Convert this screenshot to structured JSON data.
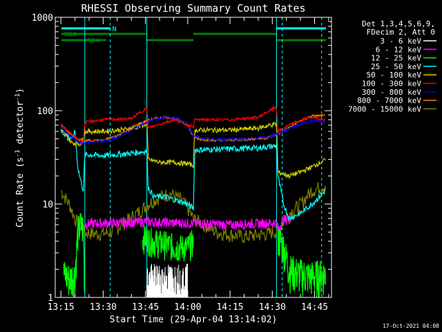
{
  "chart_data": {
    "type": "line",
    "title": "RHESSI Observing Summary Count Rates",
    "xlabel": "Start Time (29-Apr-04 13:14:02)",
    "ylabel_main": "Count Rate (s",
    "ylabel_sup1": "-1",
    "ylabel_mid": " detector",
    "ylabel_sup2": "-1",
    "ylabel_end": ")",
    "yscale": "log",
    "ylim": [
      1,
      1000
    ],
    "xlim_minutes": [
      13.25,
      14.85
    ],
    "x_ticks": [
      {
        "t": 15,
        "label": "13:15"
      },
      {
        "t": 30,
        "label": "13:30"
      },
      {
        "t": 45,
        "label": "13:45"
      },
      {
        "t": 60,
        "label": "14:00"
      },
      {
        "t": 75,
        "label": "14:15"
      },
      {
        "t": 90,
        "label": "14:30"
      },
      {
        "t": 105,
        "label": "14:45"
      }
    ],
    "y_ticks": [
      {
        "v": 1,
        "label": "1"
      },
      {
        "v": 10,
        "label": "10"
      },
      {
        "v": 100,
        "label": "100"
      },
      {
        "v": 1000,
        "label": "1000"
      }
    ],
    "grid": false,
    "legend_header": [
      "Det 1,3,4,5,6,9,",
      "FDecim 2, Att 0"
    ],
    "legend_position": "top-right-outside",
    "series": [
      {
        "name": "3 - 6 keV",
        "color": "#ffffff"
      },
      {
        "name": "6 - 12 keV",
        "color": "#ff00ff"
      },
      {
        "name": "12 - 25 keV",
        "color": "#00ff00"
      },
      {
        "name": "25 - 50 keV",
        "color": "#00ffff"
      },
      {
        "name": "50 - 100 keV",
        "color": "#d0d000"
      },
      {
        "name": "100 - 300 keV",
        "color": "#ff0000"
      },
      {
        "name": "300 - 800 keV",
        "color": "#0000ff"
      },
      {
        "name": "800 - 7000 keV",
        "color": "#ff8000"
      },
      {
        "name": "7000 - 15000 keV",
        "color": "#808000"
      }
    ],
    "flags": [
      {
        "label": "N",
        "color": "#00ffff",
        "segments": [
          [
            15.2,
            32.5
          ],
          [
            91.5,
            109
          ]
        ]
      },
      {
        "label": "RD0",
        "color": "#008000",
        "segments": [
          [
            15.2,
            45.5
          ],
          [
            62,
            91.5
          ]
        ]
      },
      {
        "label": "RD4",
        "color": "#008000",
        "segments": [
          [
            15.2,
            31
          ],
          [
            45.5,
            62
          ],
          [
            91.5,
            109
          ]
        ]
      }
    ],
    "vertical_lines": [
      {
        "t": 23.5,
        "style": "solid"
      },
      {
        "t": 32.5,
        "style": "dashed"
      },
      {
        "t": 45.5,
        "style": "solid"
      },
      {
        "t": 91.5,
        "style": "solid"
      },
      {
        "t": 93.5,
        "style": "dashed"
      },
      {
        "t": 107.5,
        "style": "dashed"
      }
    ],
    "series_shapes": {
      "red": [
        [
          15,
          72
        ],
        [
          17,
          62
        ],
        [
          19,
          55
        ],
        [
          21,
          50
        ],
        [
          23,
          48
        ],
        [
          23.5,
          75
        ],
        [
          30,
          80
        ],
        [
          40,
          82
        ],
        [
          44,
          100
        ],
        [
          45.5,
          105
        ],
        [
          46,
          65
        ],
        [
          52,
          75
        ],
        [
          55,
          80
        ],
        [
          58,
          75
        ],
        [
          60,
          70
        ],
        [
          62,
          68
        ],
        [
          62.5,
          80
        ],
        [
          75,
          80
        ],
        [
          85,
          85
        ],
        [
          91,
          108
        ],
        [
          91.5,
          108
        ],
        [
          92,
          60
        ],
        [
          98,
          75
        ],
        [
          104,
          85
        ],
        [
          109,
          80
        ]
      ],
      "blue": [
        [
          15,
          68
        ],
        [
          17,
          58
        ],
        [
          19,
          52
        ],
        [
          21,
          47
        ],
        [
          23,
          45
        ],
        [
          25,
          46
        ],
        [
          30,
          47
        ],
        [
          35,
          52
        ],
        [
          40,
          62
        ],
        [
          44,
          72
        ],
        [
          48,
          80
        ],
        [
          52,
          85
        ],
        [
          56,
          83
        ],
        [
          60,
          72
        ],
        [
          62,
          55
        ],
        [
          65,
          50
        ],
        [
          70,
          49
        ],
        [
          80,
          50
        ],
        [
          88,
          52
        ],
        [
          92,
          57
        ],
        [
          96,
          65
        ],
        [
          100,
          72
        ],
        [
          104,
          78
        ],
        [
          109,
          76
        ]
      ],
      "orange": [
        [
          15,
          70
        ],
        [
          17,
          60
        ],
        [
          19,
          54
        ],
        [
          21,
          49
        ],
        [
          23,
          47
        ],
        [
          25,
          48
        ],
        [
          30,
          48
        ],
        [
          35,
          54
        ],
        [
          40,
          66
        ],
        [
          44,
          75
        ],
        [
          48,
          82
        ],
        [
          52,
          85
        ],
        [
          56,
          82
        ],
        [
          60,
          70
        ],
        [
          62,
          52
        ],
        [
          65,
          49
        ],
        [
          70,
          48
        ],
        [
          80,
          49
        ],
        [
          88,
          51
        ],
        [
          92,
          56
        ],
        [
          96,
          66
        ],
        [
          100,
          78
        ],
        [
          104,
          88
        ],
        [
          109,
          88
        ]
      ],
      "yellow": [
        [
          15,
          62
        ],
        [
          19,
          45
        ],
        [
          22,
          44
        ],
        [
          23.5,
          60
        ],
        [
          30,
          60
        ],
        [
          40,
          64
        ],
        [
          44,
          70
        ],
        [
          45.5,
          72
        ],
        [
          46,
          30
        ],
        [
          50,
          28
        ],
        [
          55,
          28
        ],
        [
          60,
          27
        ],
        [
          62,
          26
        ],
        [
          62.5,
          62
        ],
        [
          75,
          62
        ],
        [
          85,
          65
        ],
        [
          91,
          72
        ],
        [
          91.5,
          72
        ],
        [
          92,
          22
        ],
        [
          96,
          20
        ],
        [
          100,
          22
        ],
        [
          104,
          25
        ],
        [
          109,
          30
        ]
      ],
      "cyan": [
        [
          15,
          60
        ],
        [
          17,
          55
        ],
        [
          19,
          50
        ],
        [
          20,
          60
        ],
        [
          21,
          25
        ],
        [
          22,
          18
        ],
        [
          23,
          14
        ],
        [
          23.5,
          34
        ],
        [
          30,
          33
        ],
        [
          40,
          35
        ],
        [
          45.5,
          37
        ],
        [
          46,
          15
        ],
        [
          48,
          12
        ],
        [
          52,
          12
        ],
        [
          56,
          11
        ],
        [
          60,
          10
        ],
        [
          62,
          9
        ],
        [
          62.5,
          38
        ],
        [
          75,
          39
        ],
        [
          85,
          40
        ],
        [
          91.5,
          42
        ],
        [
          92,
          20
        ],
        [
          94,
          10
        ],
        [
          96,
          7
        ],
        [
          100,
          8
        ],
        [
          104,
          10
        ],
        [
          109,
          14
        ]
      ],
      "olive": [
        [
          15,
          14
        ],
        [
          18,
          10
        ],
        [
          20,
          7
        ],
        [
          23,
          5
        ],
        [
          28,
          4.8
        ],
        [
          33,
          5
        ],
        [
          38,
          6.5
        ],
        [
          42,
          8
        ],
        [
          46,
          10
        ],
        [
          50,
          12
        ],
        [
          54,
          13
        ],
        [
          58,
          11
        ],
        [
          60,
          9
        ],
        [
          62,
          7
        ],
        [
          66,
          6
        ],
        [
          70,
          5
        ],
        [
          80,
          4.5
        ],
        [
          88,
          4.8
        ],
        [
          92,
          5.2
        ],
        [
          96,
          8
        ],
        [
          100,
          10
        ],
        [
          104,
          14
        ],
        [
          109,
          16
        ]
      ],
      "magenta": [
        [
          23.5,
          6
        ],
        [
          25,
          6.2
        ],
        [
          35,
          6.3
        ],
        [
          45,
          6.5
        ],
        [
          55,
          6.3
        ],
        [
          65,
          6.2
        ],
        [
          75,
          6
        ],
        [
          85,
          6.2
        ],
        [
          91.5,
          6.3
        ],
        [
          92,
          5.5
        ],
        [
          94,
          6.8
        ],
        [
          97,
          7
        ]
      ],
      "green_low": [
        [
          16,
          1.8
        ],
        [
          18,
          1.6
        ],
        [
          20,
          1.8
        ],
        [
          21,
          5
        ],
        [
          22,
          6
        ],
        [
          23,
          5.5
        ],
        [
          23.5,
          1
        ]
      ],
      "green_mid": [
        [
          44,
          4.5
        ],
        [
          48,
          4
        ],
        [
          52,
          3.8
        ],
        [
          56,
          3.5
        ],
        [
          60,
          3.5
        ],
        [
          62,
          4
        ]
      ],
      "green_right": [
        [
          92,
          4.5
        ],
        [
          94,
          3.5
        ],
        [
          96,
          2
        ],
        [
          100,
          1.8
        ],
        [
          104,
          1.7
        ],
        [
          109,
          1.8
        ]
      ],
      "white_burst": [
        [
          45.5,
          1
        ],
        [
          60,
          1
        ]
      ]
    }
  },
  "timestamp": "17-Oct-2021 04:08"
}
